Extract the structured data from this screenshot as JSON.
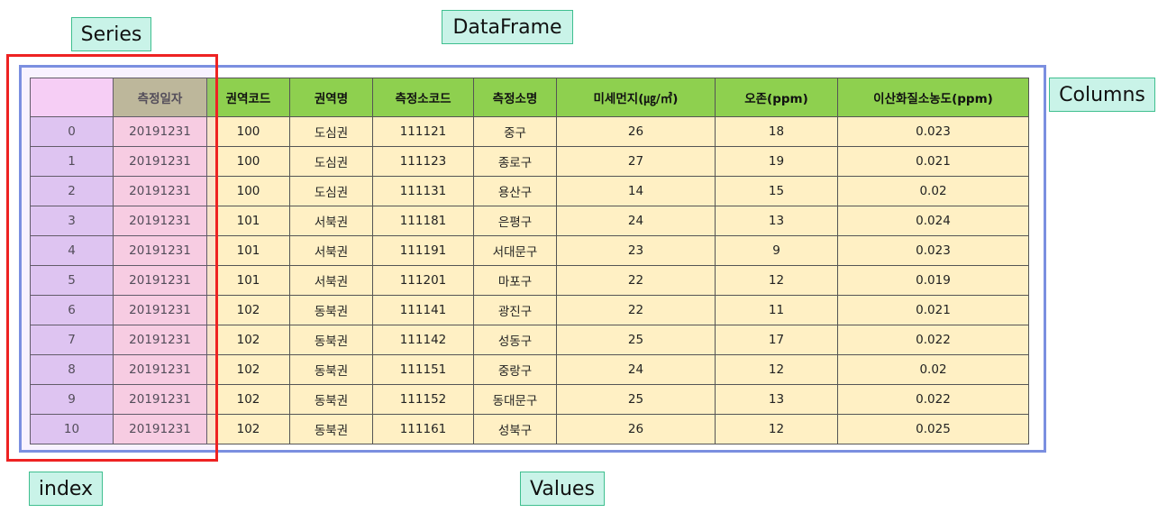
{
  "labels": {
    "series": "Series",
    "dataframe": "DataFrame",
    "columns": "Columns",
    "index": "index",
    "values": "Values"
  },
  "table": {
    "corner": "",
    "columns": [
      "측정일자",
      "권역코드",
      "권역명",
      "측정소코드",
      "측정소명",
      "미세먼지(㎍/㎥)",
      "오존(ppm)",
      "이산화질소농도(ppm)"
    ],
    "rows": [
      {
        "index": "0",
        "values": [
          "20191231",
          "100",
          "도심권",
          "111121",
          "중구",
          "26",
          "18",
          "0.023"
        ]
      },
      {
        "index": "1",
        "values": [
          "20191231",
          "100",
          "도심권",
          "111123",
          "종로구",
          "27",
          "19",
          "0.021"
        ]
      },
      {
        "index": "2",
        "values": [
          "20191231",
          "100",
          "도심권",
          "111131",
          "용산구",
          "14",
          "15",
          "0.02"
        ]
      },
      {
        "index": "3",
        "values": [
          "20191231",
          "101",
          "서북권",
          "111181",
          "은평구",
          "24",
          "13",
          "0.024"
        ]
      },
      {
        "index": "4",
        "values": [
          "20191231",
          "101",
          "서북권",
          "111191",
          "서대문구",
          "23",
          "9",
          "0.023"
        ]
      },
      {
        "index": "5",
        "values": [
          "20191231",
          "101",
          "서북권",
          "111201",
          "마포구",
          "22",
          "12",
          "0.019"
        ]
      },
      {
        "index": "6",
        "values": [
          "20191231",
          "102",
          "동북권",
          "111141",
          "광진구",
          "22",
          "11",
          "0.021"
        ]
      },
      {
        "index": "7",
        "values": [
          "20191231",
          "102",
          "동북권",
          "111142",
          "성동구",
          "25",
          "17",
          "0.022"
        ]
      },
      {
        "index": "8",
        "values": [
          "20191231",
          "102",
          "동북권",
          "111151",
          "중랑구",
          "24",
          "12",
          "0.02"
        ]
      },
      {
        "index": "9",
        "values": [
          "20191231",
          "102",
          "동북권",
          "111152",
          "동대문구",
          "25",
          "13",
          "0.022"
        ]
      },
      {
        "index": "10",
        "values": [
          "20191231",
          "102",
          "동북권",
          "111161",
          "성북구",
          "26",
          "12",
          "0.025"
        ]
      }
    ]
  },
  "colors": {
    "header": "#8ed04f",
    "values_cell": "#fff0c4",
    "index_cell": "#e2cbef",
    "series_cell": "#fed4de",
    "series_header": "#bcbc8e",
    "corner": "#fdd7f4",
    "label_box": "#c9f3e8",
    "series_frame": "#ee2222",
    "dataframe_frame": "#7b8fe0"
  }
}
